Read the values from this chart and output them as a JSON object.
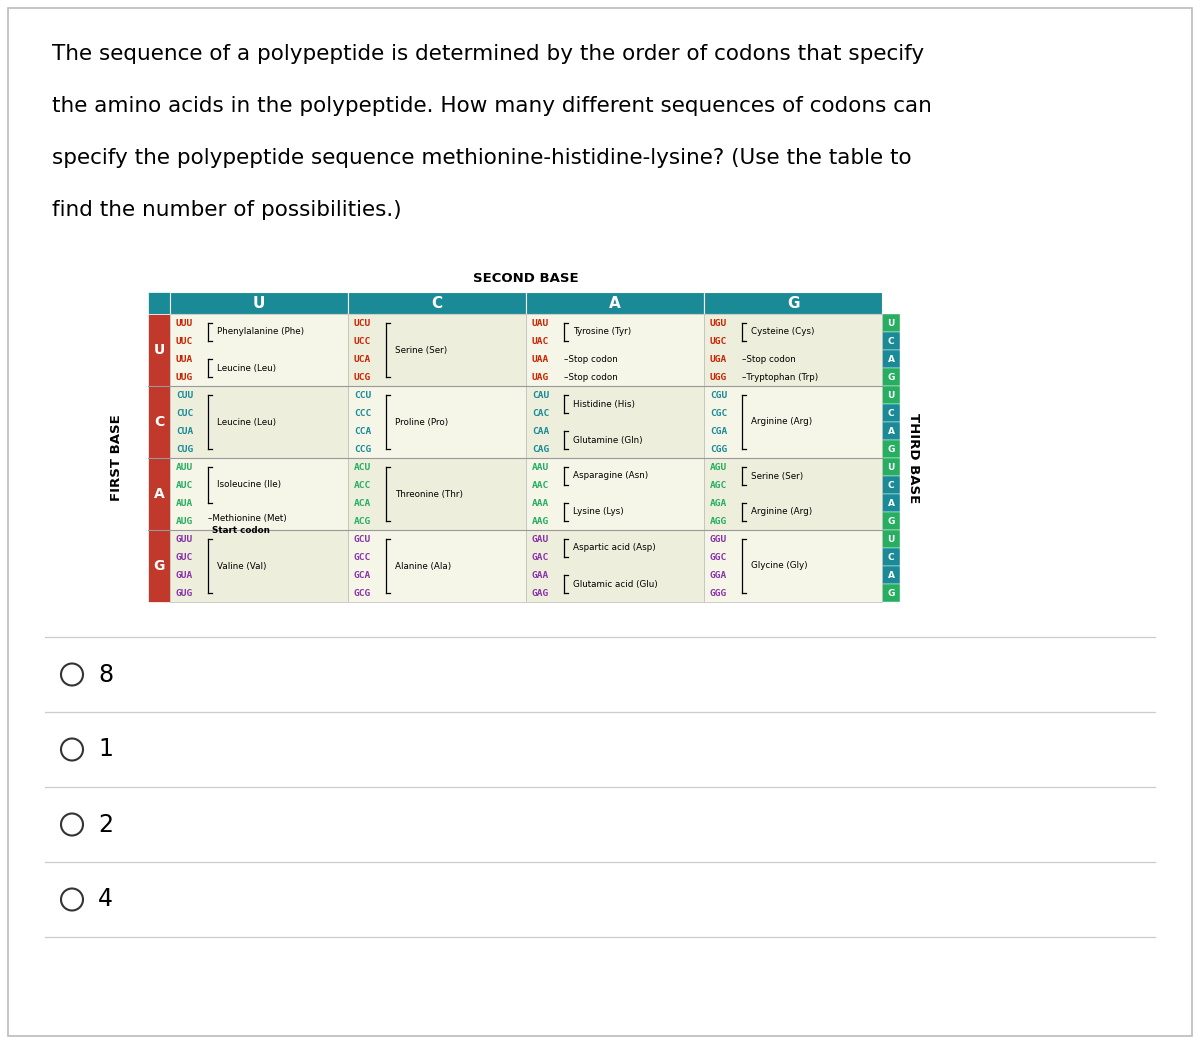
{
  "title_text": "The sequence of a polypeptide is determined by the order of codons that specify\nthe amino acids in the polypeptide. How many different sequences of codons can\nspecify the polypeptide sequence methionine-histidine-lysine? (Use the table to\nfind the number of possibilities.)",
  "second_base_label": "SECOND BASE",
  "first_base_label": "FIRST BASE",
  "third_base_label": "THIRD BASE",
  "col_headers": [
    "U",
    "C",
    "A",
    "G"
  ],
  "row_headers": [
    "U",
    "C",
    "A",
    "G"
  ],
  "header_bg": "#1a8a96",
  "row_bg": "#c0392b",
  "third_green": "#27ae60",
  "third_blue": "#1a8a96",
  "codon_colors": {
    "U": "#cc2200",
    "C": "#1a8a96",
    "A": "#27ae60",
    "G": "#8833aa"
  },
  "answer_options": [
    "8",
    "1",
    "2",
    "4"
  ],
  "bg_color": "#ffffff",
  "table_cells": [
    {
      "row": 0,
      "col": 0,
      "codons": [
        "UUU",
        "UUC",
        "UUA",
        "UUG"
      ],
      "groups": [
        {
          "name": "Phenylalanine (Phe)",
          "start": 0,
          "end": 1,
          "type": "bracket"
        },
        {
          "name": "Leucine (Leu)",
          "start": 2,
          "end": 3,
          "type": "bracket"
        }
      ]
    },
    {
      "row": 0,
      "col": 1,
      "codons": [
        "UCU",
        "UCC",
        "UCA",
        "UCG"
      ],
      "groups": [
        {
          "name": "Serine (Ser)",
          "start": 0,
          "end": 3,
          "type": "bracket"
        }
      ]
    },
    {
      "row": 0,
      "col": 2,
      "codons": [
        "UAU",
        "UAC",
        "UAA",
        "UAG"
      ],
      "groups": [
        {
          "name": "Tyrosine (Tyr)",
          "start": 0,
          "end": 1,
          "type": "bracket"
        },
        {
          "name": "–Stop codon",
          "start": 2,
          "end": 2,
          "type": "dash"
        },
        {
          "name": "–Stop codon",
          "start": 3,
          "end": 3,
          "type": "dash"
        }
      ]
    },
    {
      "row": 0,
      "col": 3,
      "codons": [
        "UGU",
        "UGC",
        "UGA",
        "UGG"
      ],
      "groups": [
        {
          "name": "Cysteine (Cys)",
          "start": 0,
          "end": 1,
          "type": "bracket"
        },
        {
          "name": "–Stop codon",
          "start": 2,
          "end": 2,
          "type": "dash"
        },
        {
          "name": "–Tryptophan (Trp)",
          "start": 3,
          "end": 3,
          "type": "dash"
        }
      ]
    },
    {
      "row": 1,
      "col": 0,
      "codons": [
        "CUU",
        "CUC",
        "CUA",
        "CUG"
      ],
      "groups": [
        {
          "name": "Leucine (Leu)",
          "start": 0,
          "end": 3,
          "type": "bracket"
        }
      ]
    },
    {
      "row": 1,
      "col": 1,
      "codons": [
        "CCU",
        "CCC",
        "CCA",
        "CCG"
      ],
      "groups": [
        {
          "name": "Proline (Pro)",
          "start": 0,
          "end": 3,
          "type": "bracket"
        }
      ]
    },
    {
      "row": 1,
      "col": 2,
      "codons": [
        "CAU",
        "CAC",
        "CAA",
        "CAG"
      ],
      "groups": [
        {
          "name": "Histidine (His)",
          "start": 0,
          "end": 1,
          "type": "bracket"
        },
        {
          "name": "Glutamine (Gln)",
          "start": 2,
          "end": 3,
          "type": "bracket"
        }
      ]
    },
    {
      "row": 1,
      "col": 3,
      "codons": [
        "CGU",
        "CGC",
        "CGA",
        "CGG"
      ],
      "groups": [
        {
          "name": "Arginine (Arg)",
          "start": 0,
          "end": 3,
          "type": "bracket"
        }
      ]
    },
    {
      "row": 2,
      "col": 0,
      "codons": [
        "AUU",
        "AUC",
        "AUA",
        "AUG"
      ],
      "groups": [
        {
          "name": "Isoleucine (Ile)",
          "start": 0,
          "end": 2,
          "type": "bracket"
        },
        {
          "name": "Methionine (Met)",
          "start": 3,
          "end": 3,
          "type": "dash_start"
        }
      ]
    },
    {
      "row": 2,
      "col": 1,
      "codons": [
        "ACU",
        "ACC",
        "ACA",
        "ACG"
      ],
      "groups": [
        {
          "name": "Threonine (Thr)",
          "start": 0,
          "end": 3,
          "type": "bracket"
        }
      ]
    },
    {
      "row": 2,
      "col": 2,
      "codons": [
        "AAU",
        "AAC",
        "AAA",
        "AAG"
      ],
      "groups": [
        {
          "name": "Asparagine (Asn)",
          "start": 0,
          "end": 1,
          "type": "bracket"
        },
        {
          "name": "Lysine (Lys)",
          "start": 2,
          "end": 3,
          "type": "bracket"
        }
      ]
    },
    {
      "row": 2,
      "col": 3,
      "codons": [
        "AGU",
        "AGC",
        "AGA",
        "AGG"
      ],
      "groups": [
        {
          "name": "Serine (Ser)",
          "start": 0,
          "end": 1,
          "type": "bracket"
        },
        {
          "name": "Arginine (Arg)",
          "start": 2,
          "end": 3,
          "type": "bracket"
        }
      ]
    },
    {
      "row": 3,
      "col": 0,
      "codons": [
        "GUU",
        "GUC",
        "GUA",
        "GUG"
      ],
      "groups": [
        {
          "name": "Valine (Val)",
          "start": 0,
          "end": 3,
          "type": "bracket"
        }
      ]
    },
    {
      "row": 3,
      "col": 1,
      "codons": [
        "GCU",
        "GCC",
        "GCA",
        "GCG"
      ],
      "groups": [
        {
          "name": "Alanine (Ala)",
          "start": 0,
          "end": 3,
          "type": "bracket"
        }
      ]
    },
    {
      "row": 3,
      "col": 2,
      "codons": [
        "GAU",
        "GAC",
        "GAA",
        "GAG"
      ],
      "groups": [
        {
          "name": "Aspartic acid (Asp)",
          "start": 0,
          "end": 1,
          "type": "bracket"
        },
        {
          "name": "Glutamic acid (Glu)",
          "start": 2,
          "end": 3,
          "type": "bracket"
        }
      ]
    },
    {
      "row": 3,
      "col": 3,
      "codons": [
        "GGU",
        "GGC",
        "GGA",
        "GGG"
      ],
      "groups": [
        {
          "name": "Glycine (Gly)",
          "start": 0,
          "end": 3,
          "type": "bracket"
        }
      ]
    }
  ]
}
